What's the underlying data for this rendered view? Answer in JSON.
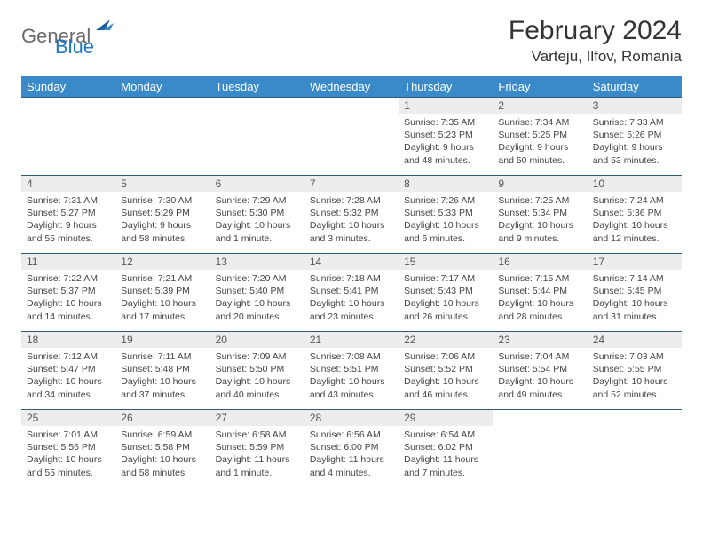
{
  "logo": {
    "part1": "General",
    "part2": "Blue"
  },
  "title": "February 2024",
  "location": "Varteju, Ilfov, Romania",
  "colors": {
    "header_bg": "#3a8ac9",
    "header_text": "#ffffff",
    "daynum_bg": "#ededed",
    "row_border": "#2f5a7a",
    "logo_gray": "#6b6b6b",
    "logo_blue": "#2176c1"
  },
  "day_labels": [
    "Sunday",
    "Monday",
    "Tuesday",
    "Wednesday",
    "Thursday",
    "Friday",
    "Saturday"
  ],
  "weeks": [
    [
      {
        "empty": true
      },
      {
        "empty": true
      },
      {
        "empty": true
      },
      {
        "empty": true
      },
      {
        "num": "1",
        "sunrise": "Sunrise: 7:35 AM",
        "sunset": "Sunset: 5:23 PM",
        "day1": "Daylight: 9 hours",
        "day2": "and 48 minutes."
      },
      {
        "num": "2",
        "sunrise": "Sunrise: 7:34 AM",
        "sunset": "Sunset: 5:25 PM",
        "day1": "Daylight: 9 hours",
        "day2": "and 50 minutes."
      },
      {
        "num": "3",
        "sunrise": "Sunrise: 7:33 AM",
        "sunset": "Sunset: 5:26 PM",
        "day1": "Daylight: 9 hours",
        "day2": "and 53 minutes."
      }
    ],
    [
      {
        "num": "4",
        "sunrise": "Sunrise: 7:31 AM",
        "sunset": "Sunset: 5:27 PM",
        "day1": "Daylight: 9 hours",
        "day2": "and 55 minutes."
      },
      {
        "num": "5",
        "sunrise": "Sunrise: 7:30 AM",
        "sunset": "Sunset: 5:29 PM",
        "day1": "Daylight: 9 hours",
        "day2": "and 58 minutes."
      },
      {
        "num": "6",
        "sunrise": "Sunrise: 7:29 AM",
        "sunset": "Sunset: 5:30 PM",
        "day1": "Daylight: 10 hours",
        "day2": "and 1 minute."
      },
      {
        "num": "7",
        "sunrise": "Sunrise: 7:28 AM",
        "sunset": "Sunset: 5:32 PM",
        "day1": "Daylight: 10 hours",
        "day2": "and 3 minutes."
      },
      {
        "num": "8",
        "sunrise": "Sunrise: 7:26 AM",
        "sunset": "Sunset: 5:33 PM",
        "day1": "Daylight: 10 hours",
        "day2": "and 6 minutes."
      },
      {
        "num": "9",
        "sunrise": "Sunrise: 7:25 AM",
        "sunset": "Sunset: 5:34 PM",
        "day1": "Daylight: 10 hours",
        "day2": "and 9 minutes."
      },
      {
        "num": "10",
        "sunrise": "Sunrise: 7:24 AM",
        "sunset": "Sunset: 5:36 PM",
        "day1": "Daylight: 10 hours",
        "day2": "and 12 minutes."
      }
    ],
    [
      {
        "num": "11",
        "sunrise": "Sunrise: 7:22 AM",
        "sunset": "Sunset: 5:37 PM",
        "day1": "Daylight: 10 hours",
        "day2": "and 14 minutes."
      },
      {
        "num": "12",
        "sunrise": "Sunrise: 7:21 AM",
        "sunset": "Sunset: 5:39 PM",
        "day1": "Daylight: 10 hours",
        "day2": "and 17 minutes."
      },
      {
        "num": "13",
        "sunrise": "Sunrise: 7:20 AM",
        "sunset": "Sunset: 5:40 PM",
        "day1": "Daylight: 10 hours",
        "day2": "and 20 minutes."
      },
      {
        "num": "14",
        "sunrise": "Sunrise: 7:18 AM",
        "sunset": "Sunset: 5:41 PM",
        "day1": "Daylight: 10 hours",
        "day2": "and 23 minutes."
      },
      {
        "num": "15",
        "sunrise": "Sunrise: 7:17 AM",
        "sunset": "Sunset: 5:43 PM",
        "day1": "Daylight: 10 hours",
        "day2": "and 26 minutes."
      },
      {
        "num": "16",
        "sunrise": "Sunrise: 7:15 AM",
        "sunset": "Sunset: 5:44 PM",
        "day1": "Daylight: 10 hours",
        "day2": "and 28 minutes."
      },
      {
        "num": "17",
        "sunrise": "Sunrise: 7:14 AM",
        "sunset": "Sunset: 5:45 PM",
        "day1": "Daylight: 10 hours",
        "day2": "and 31 minutes."
      }
    ],
    [
      {
        "num": "18",
        "sunrise": "Sunrise: 7:12 AM",
        "sunset": "Sunset: 5:47 PM",
        "day1": "Daylight: 10 hours",
        "day2": "and 34 minutes."
      },
      {
        "num": "19",
        "sunrise": "Sunrise: 7:11 AM",
        "sunset": "Sunset: 5:48 PM",
        "day1": "Daylight: 10 hours",
        "day2": "and 37 minutes."
      },
      {
        "num": "20",
        "sunrise": "Sunrise: 7:09 AM",
        "sunset": "Sunset: 5:50 PM",
        "day1": "Daylight: 10 hours",
        "day2": "and 40 minutes."
      },
      {
        "num": "21",
        "sunrise": "Sunrise: 7:08 AM",
        "sunset": "Sunset: 5:51 PM",
        "day1": "Daylight: 10 hours",
        "day2": "and 43 minutes."
      },
      {
        "num": "22",
        "sunrise": "Sunrise: 7:06 AM",
        "sunset": "Sunset: 5:52 PM",
        "day1": "Daylight: 10 hours",
        "day2": "and 46 minutes."
      },
      {
        "num": "23",
        "sunrise": "Sunrise: 7:04 AM",
        "sunset": "Sunset: 5:54 PM",
        "day1": "Daylight: 10 hours",
        "day2": "and 49 minutes."
      },
      {
        "num": "24",
        "sunrise": "Sunrise: 7:03 AM",
        "sunset": "Sunset: 5:55 PM",
        "day1": "Daylight: 10 hours",
        "day2": "and 52 minutes."
      }
    ],
    [
      {
        "num": "25",
        "sunrise": "Sunrise: 7:01 AM",
        "sunset": "Sunset: 5:56 PM",
        "day1": "Daylight: 10 hours",
        "day2": "and 55 minutes."
      },
      {
        "num": "26",
        "sunrise": "Sunrise: 6:59 AM",
        "sunset": "Sunset: 5:58 PM",
        "day1": "Daylight: 10 hours",
        "day2": "and 58 minutes."
      },
      {
        "num": "27",
        "sunrise": "Sunrise: 6:58 AM",
        "sunset": "Sunset: 5:59 PM",
        "day1": "Daylight: 11 hours",
        "day2": "and 1 minute."
      },
      {
        "num": "28",
        "sunrise": "Sunrise: 6:56 AM",
        "sunset": "Sunset: 6:00 PM",
        "day1": "Daylight: 11 hours",
        "day2": "and 4 minutes."
      },
      {
        "num": "29",
        "sunrise": "Sunrise: 6:54 AM",
        "sunset": "Sunset: 6:02 PM",
        "day1": "Daylight: 11 hours",
        "day2": "and 7 minutes."
      },
      {
        "empty": true
      },
      {
        "empty": true
      }
    ]
  ]
}
